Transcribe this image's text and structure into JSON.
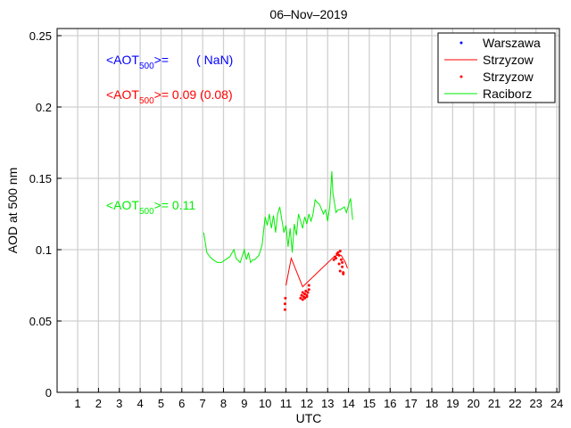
{
  "chart_data": {
    "type": "line",
    "title": "06–Nov–2019",
    "xlabel": "UTC",
    "ylabel": "AOD at 500 nm",
    "xlim": [
      0,
      24
    ],
    "ylim": [
      0,
      0.255
    ],
    "grid": true,
    "xticks": [
      "1",
      "2",
      "3",
      "4",
      "5",
      "6",
      "7",
      "8",
      "9",
      "10",
      "11",
      "12",
      "13",
      "14",
      "15",
      "16",
      "17",
      "18",
      "19",
      "20",
      "21",
      "22",
      "23",
      "24"
    ],
    "yticks": [
      "0",
      "0.05",
      "0.1",
      "0.15",
      "0.2",
      "0.25"
    ],
    "legend_placement": "top-right",
    "legend": [
      "Warszawa",
      "Strzyzow",
      "Strzyzow",
      "Raciborz"
    ],
    "annotations": [
      {
        "prefix": "<AOT",
        "sub": "500",
        "suffix": ">=        ( NaN)",
        "color": "#0000ff"
      },
      {
        "prefix": "<AOT",
        "sub": "500",
        "suffix": ">= 0.09 (0.08)",
        "color": "#ff0000"
      },
      {
        "prefix": "<AOT",
        "sub": "500",
        "suffix": ">= 0.11",
        "color": "#00ee00"
      }
    ],
    "series": [
      {
        "name": "Warszawa",
        "style": "dots",
        "color": "#0000ff",
        "x": [],
        "y": []
      },
      {
        "name": "Strzyzow",
        "style": "line",
        "color": "#ff0000",
        "x": [
          11.0,
          11.25,
          11.8,
          13.3,
          13.45,
          13.65,
          13.85,
          13.95
        ],
        "y": [
          0.075,
          0.094,
          0.074,
          0.095,
          0.096,
          0.096,
          0.091,
          0.087
        ]
      },
      {
        "name": "Strzyzow",
        "style": "dots",
        "color": "#ff0000",
        "x": [
          10.95,
          10.95,
          10.97,
          11.7,
          11.75,
          11.8,
          11.85,
          11.9,
          11.95,
          12.0,
          12.05,
          12.1,
          11.8,
          11.9,
          12.0,
          12.1,
          13.3,
          13.35,
          13.4,
          13.45,
          13.5,
          13.55,
          13.6,
          13.65,
          13.7,
          13.75,
          13.55,
          13.6,
          13.7,
          13.75
        ],
        "y": [
          0.058,
          0.062,
          0.066,
          0.066,
          0.068,
          0.07,
          0.067,
          0.069,
          0.071,
          0.068,
          0.07,
          0.072,
          0.065,
          0.066,
          0.067,
          0.075,
          0.093,
          0.095,
          0.094,
          0.097,
          0.098,
          0.096,
          0.099,
          0.093,
          0.088,
          0.083,
          0.09,
          0.085,
          0.091,
          0.084
        ]
      },
      {
        "name": "Raciborz",
        "style": "line",
        "color": "#00ee00",
        "x": [
          7.05,
          7.2,
          7.35,
          7.5,
          7.7,
          7.9,
          8.1,
          8.3,
          8.5,
          8.6,
          8.8,
          9.0,
          9.1,
          9.2,
          9.3,
          9.4,
          9.5,
          9.7,
          9.85,
          10.0,
          10.1,
          10.2,
          10.3,
          10.4,
          10.5,
          10.6,
          10.7,
          10.9,
          11.0,
          11.1,
          11.2,
          11.3,
          11.4,
          11.5,
          11.6,
          11.7,
          11.8,
          11.9,
          12.0,
          12.1,
          12.2,
          12.3,
          12.4,
          12.5,
          12.6,
          12.8,
          12.9,
          13.0,
          13.1,
          13.2,
          13.25,
          13.4,
          13.5,
          13.6,
          13.8,
          13.9,
          14.0,
          14.1,
          14.2
        ],
        "y": [
          0.112,
          0.098,
          0.095,
          0.093,
          0.091,
          0.091,
          0.093,
          0.095,
          0.1,
          0.094,
          0.091,
          0.1,
          0.093,
          0.098,
          0.091,
          0.093,
          0.093,
          0.096,
          0.103,
          0.123,
          0.117,
          0.125,
          0.115,
          0.124,
          0.112,
          0.125,
          0.13,
          0.112,
          0.117,
          0.102,
          0.115,
          0.098,
          0.118,
          0.11,
          0.125,
          0.12,
          0.115,
          0.123,
          0.118,
          0.125,
          0.12,
          0.125,
          0.135,
          0.133,
          0.132,
          0.125,
          0.128,
          0.12,
          0.13,
          0.155,
          0.14,
          0.126,
          0.128,
          0.128,
          0.13,
          0.126,
          0.131,
          0.136,
          0.121
        ]
      }
    ]
  }
}
